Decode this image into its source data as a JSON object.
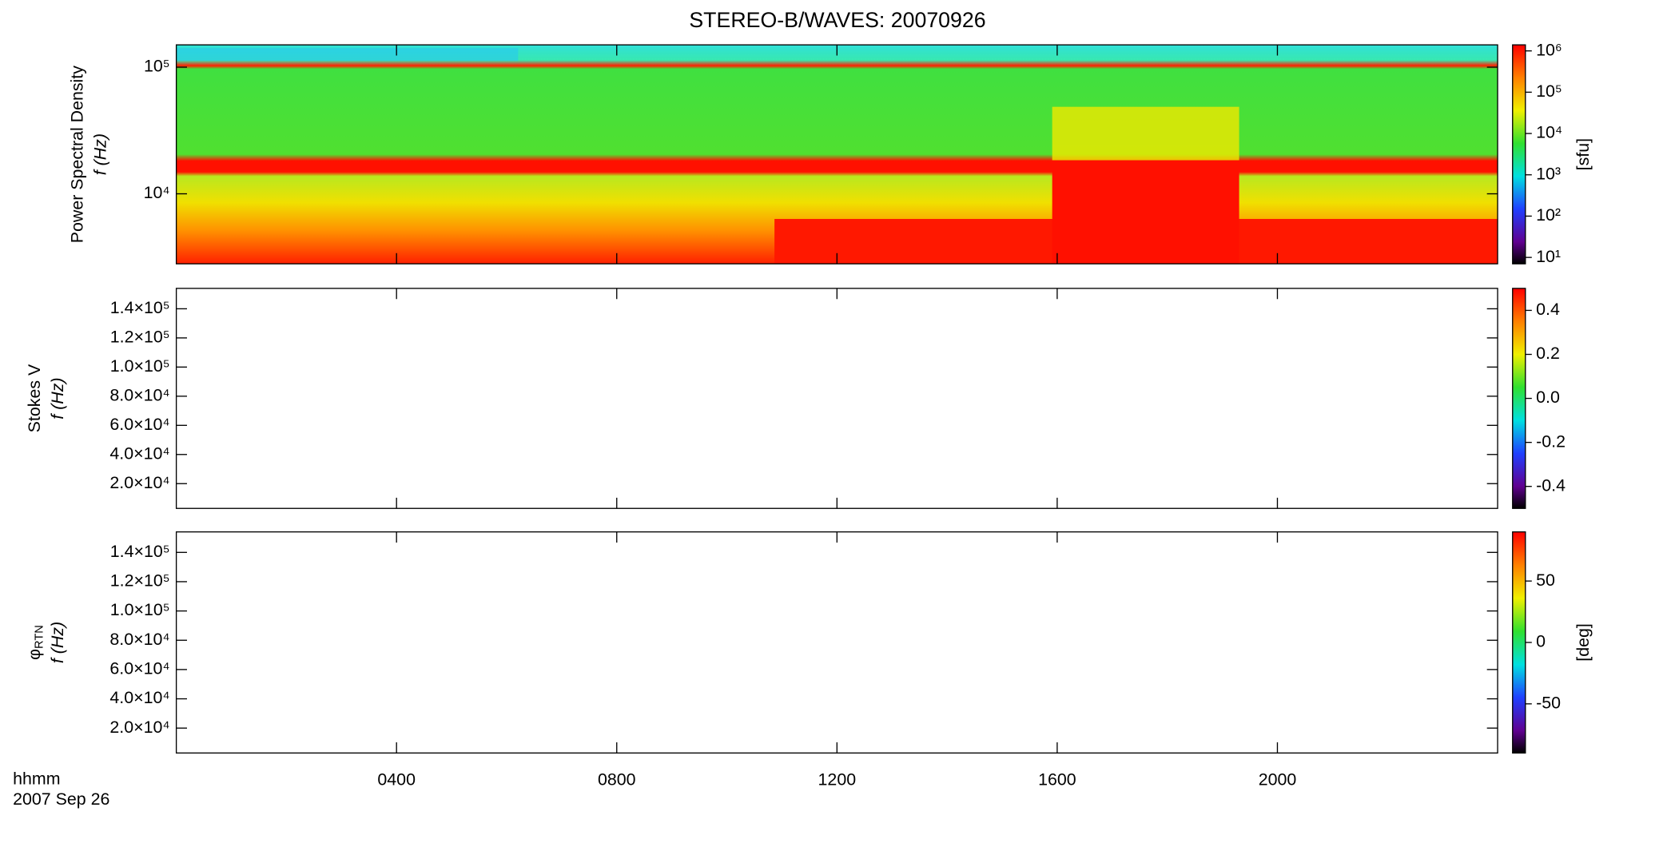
{
  "chart_data": [
    {
      "type": "heatmap",
      "title": "STEREO-B/WAVES: 20070926",
      "ylabel": "Power Spectral Density",
      "ylabel_unit": "f (Hz)",
      "ylog": true,
      "ylim": [
        2800,
        150000
      ],
      "yticks": [
        {
          "value": 10000,
          "label": "10⁴"
        },
        {
          "value": 100000,
          "label": "10⁵"
        }
      ],
      "colorbar": {
        "log": true,
        "zlim": [
          7,
          1400000
        ],
        "label": "[sfu]",
        "ticks": [
          {
            "value": 10,
            "label": "10¹"
          },
          {
            "value": 100,
            "label": "10²"
          },
          {
            "value": 1000,
            "label": "10³"
          },
          {
            "value": 10000,
            "label": "10⁴"
          },
          {
            "value": 100000,
            "label": "10⁵"
          },
          {
            "value": 1000000,
            "label": "10⁶"
          }
        ]
      }
    },
    {
      "type": "heatmap",
      "ylabel": "Stokes V",
      "ylabel_unit": "f (Hz)",
      "ylog": false,
      "ylim": [
        3000,
        154000
      ],
      "yticks": [
        {
          "value": 20000,
          "label": "2.0×10⁴"
        },
        {
          "value": 40000,
          "label": "4.0×10⁴"
        },
        {
          "value": 60000,
          "label": "6.0×10⁴"
        },
        {
          "value": 80000,
          "label": "8.0×10⁴"
        },
        {
          "value": 100000,
          "label": "1.0×10⁵"
        },
        {
          "value": 120000,
          "label": "1.2×10⁵"
        },
        {
          "value": 140000,
          "label": "1.4×10⁵"
        }
      ],
      "colorbar": {
        "log": false,
        "zlim": [
          -0.5,
          0.5
        ],
        "ticks": [
          -0.4,
          -0.2,
          {
            "value": 0,
            "label": "0.0"
          },
          0.2,
          0.4
        ]
      }
    },
    {
      "type": "heatmap",
      "ylabel": "φ",
      "ylabel_sub": "RTN",
      "ylabel_unit": "f (Hz)",
      "ylog": false,
      "ylim": [
        3000,
        154000
      ],
      "yticks": [
        {
          "value": 20000,
          "label": "2.0×10⁴"
        },
        {
          "value": 40000,
          "label": "4.0×10⁴"
        },
        {
          "value": 60000,
          "label": "6.0×10⁴"
        },
        {
          "value": 80000,
          "label": "8.0×10⁴"
        },
        {
          "value": 100000,
          "label": "1.0×10⁵"
        },
        {
          "value": 120000,
          "label": "1.2×10⁵"
        },
        {
          "value": 140000,
          "label": "1.4×10⁵"
        }
      ],
      "colorbar": {
        "log": false,
        "zlim": [
          -90,
          90
        ],
        "label": "[deg]",
        "ticks": [
          -50,
          0,
          50
        ]
      },
      "xlabel": "hhmm",
      "date": "2007 Sep 26",
      "xlim": [
        0,
        1440
      ],
      "xticks": [
        {
          "value": 240,
          "label": "0400"
        },
        {
          "value": 480,
          "label": "0800"
        },
        {
          "value": 720,
          "label": "1200"
        },
        {
          "value": 960,
          "label": "1600"
        },
        {
          "value": 1200,
          "label": "2000"
        }
      ]
    }
  ]
}
